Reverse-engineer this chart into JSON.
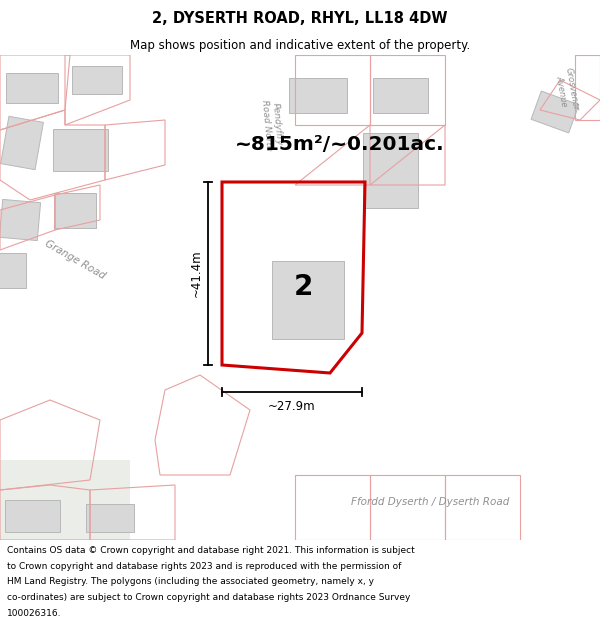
{
  "title_line1": "2, DYSERTH ROAD, RHYL, LL18 4DW",
  "title_line2": "Map shows position and indicative extent of the property.",
  "footer_text": "Contains OS data © Crown copyright and database right 2021. This information is subject to Crown copyright and database rights 2023 and is reproduced with the permission of HM Land Registry. The polygons (including the associated geometry, namely x, y co-ordinates) are subject to Crown copyright and database rights 2023 Ordnance Survey 100026316.",
  "area_label": "~815m²/~0.201ac.",
  "dimension_vertical": "~41.4m",
  "dimension_horizontal": "~27.9m",
  "property_number": "2",
  "map_bg": "#f2f2f2",
  "road_white": "#ffffff",
  "building_fill": "#d8d8d8",
  "building_edge": "#b8b8b8",
  "pink_color": "#e8a0a0",
  "red_poly_color": "#cc0000",
  "grey_road_fill": "#e8e8e8",
  "green_tinge": "#e8ede8"
}
